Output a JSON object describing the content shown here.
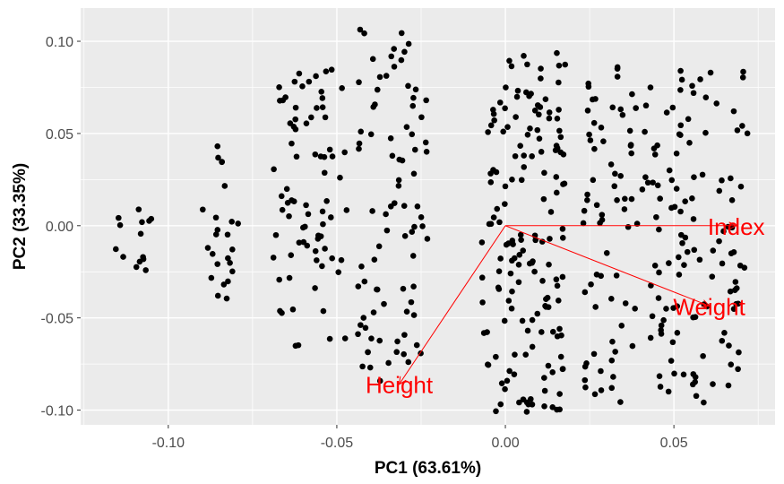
{
  "chart_data": {
    "type": "scatter",
    "title": "",
    "xlabel": "PC1 (63.61%)",
    "ylabel": "PC2 (33.35%)",
    "xlim": [
      -0.126,
      0.08
    ],
    "ylim": [
      -0.108,
      0.118
    ],
    "x_ticks": [
      -0.1,
      -0.05,
      0.0,
      0.05
    ],
    "x_tick_labels": [
      "-0.10",
      "-0.05",
      "0.00",
      "0.05"
    ],
    "y_ticks": [
      -0.1,
      -0.05,
      0.0,
      0.05,
      0.1
    ],
    "y_tick_labels": [
      "-0.10",
      "-0.05",
      "0.00",
      "0.05",
      "0.10"
    ],
    "grid": true,
    "background": "#ebebeb",
    "point_color": "#000000",
    "arrow_color": "#ff0000",
    "arrow_origin": [
      0,
      0
    ],
    "arrows": [
      {
        "label": "Index",
        "x": 0.0685,
        "y": 0.0
      },
      {
        "label": "Weight",
        "x": 0.0605,
        "y": -0.0435
      },
      {
        "label": "Height",
        "x": -0.0315,
        "y": -0.086
      }
    ],
    "clusters": [
      {
        "x_range": [
          -0.117,
          -0.104
        ],
        "y_range": [
          -0.032,
          0.009
        ],
        "n": 14
      },
      {
        "x_range": [
          -0.09,
          -0.079
        ],
        "y_range": [
          -0.04,
          0.048
        ],
        "n": 24
      },
      {
        "x_range": [
          -0.069,
          -0.047
        ],
        "y_range": [
          -0.066,
          0.085
        ],
        "n": 78
      },
      {
        "x_range": [
          -0.044,
          -0.023
        ],
        "y_range": [
          -0.085,
          0.108
        ],
        "n": 85
      },
      {
        "x_range": [
          -0.007,
          0.018
        ],
        "y_range": [
          -0.102,
          0.094
        ],
        "n": 160
      },
      {
        "x_range": [
          0.023,
          0.072
        ],
        "y_range": [
          -0.096,
          0.091
        ],
        "n": 190
      }
    ]
  }
}
